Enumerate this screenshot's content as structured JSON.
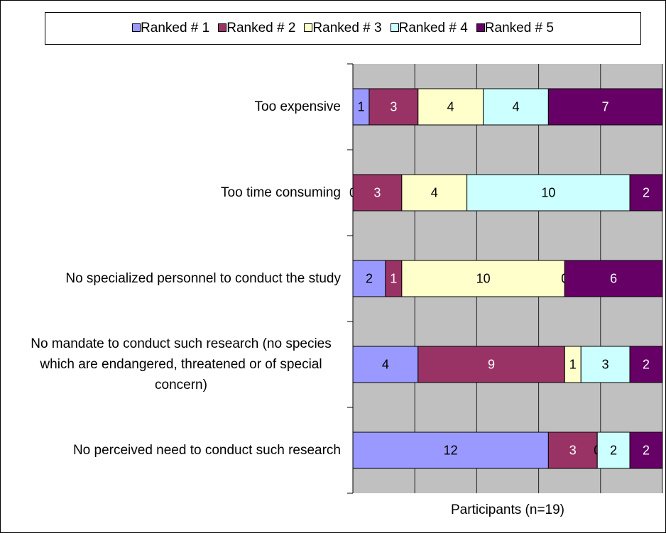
{
  "chart_data": {
    "type": "stacked_barh",
    "categories": [
      "Too expensive",
      "Too time consuming",
      "No specialized personnel to conduct the study",
      "No mandate to conduct such research (no species which are endangered, threatened or of special concern)",
      "No perceived need to conduct such research"
    ],
    "series": [
      {
        "name": "Ranked # 1",
        "color": "#9999ff",
        "values": [
          1,
          0,
          2,
          4,
          12
        ]
      },
      {
        "name": "Ranked # 2",
        "color": "#993366",
        "values": [
          3,
          3,
          1,
          9,
          3
        ]
      },
      {
        "name": "Ranked # 3",
        "color": "#ffffcc",
        "values": [
          4,
          4,
          10,
          1,
          0
        ]
      },
      {
        "name": "Ranked # 4",
        "color": "#ccffff",
        "values": [
          4,
          10,
          0,
          3,
          2
        ]
      },
      {
        "name": "Ranked # 5",
        "color": "#660066",
        "values": [
          7,
          2,
          6,
          2,
          2
        ]
      }
    ],
    "xlabel": "Participants (n=19)",
    "xlim": [
      0,
      19
    ],
    "xticks": [
      0,
      3.8,
      7.6,
      11.4,
      15.2,
      19
    ],
    "grid": true
  }
}
